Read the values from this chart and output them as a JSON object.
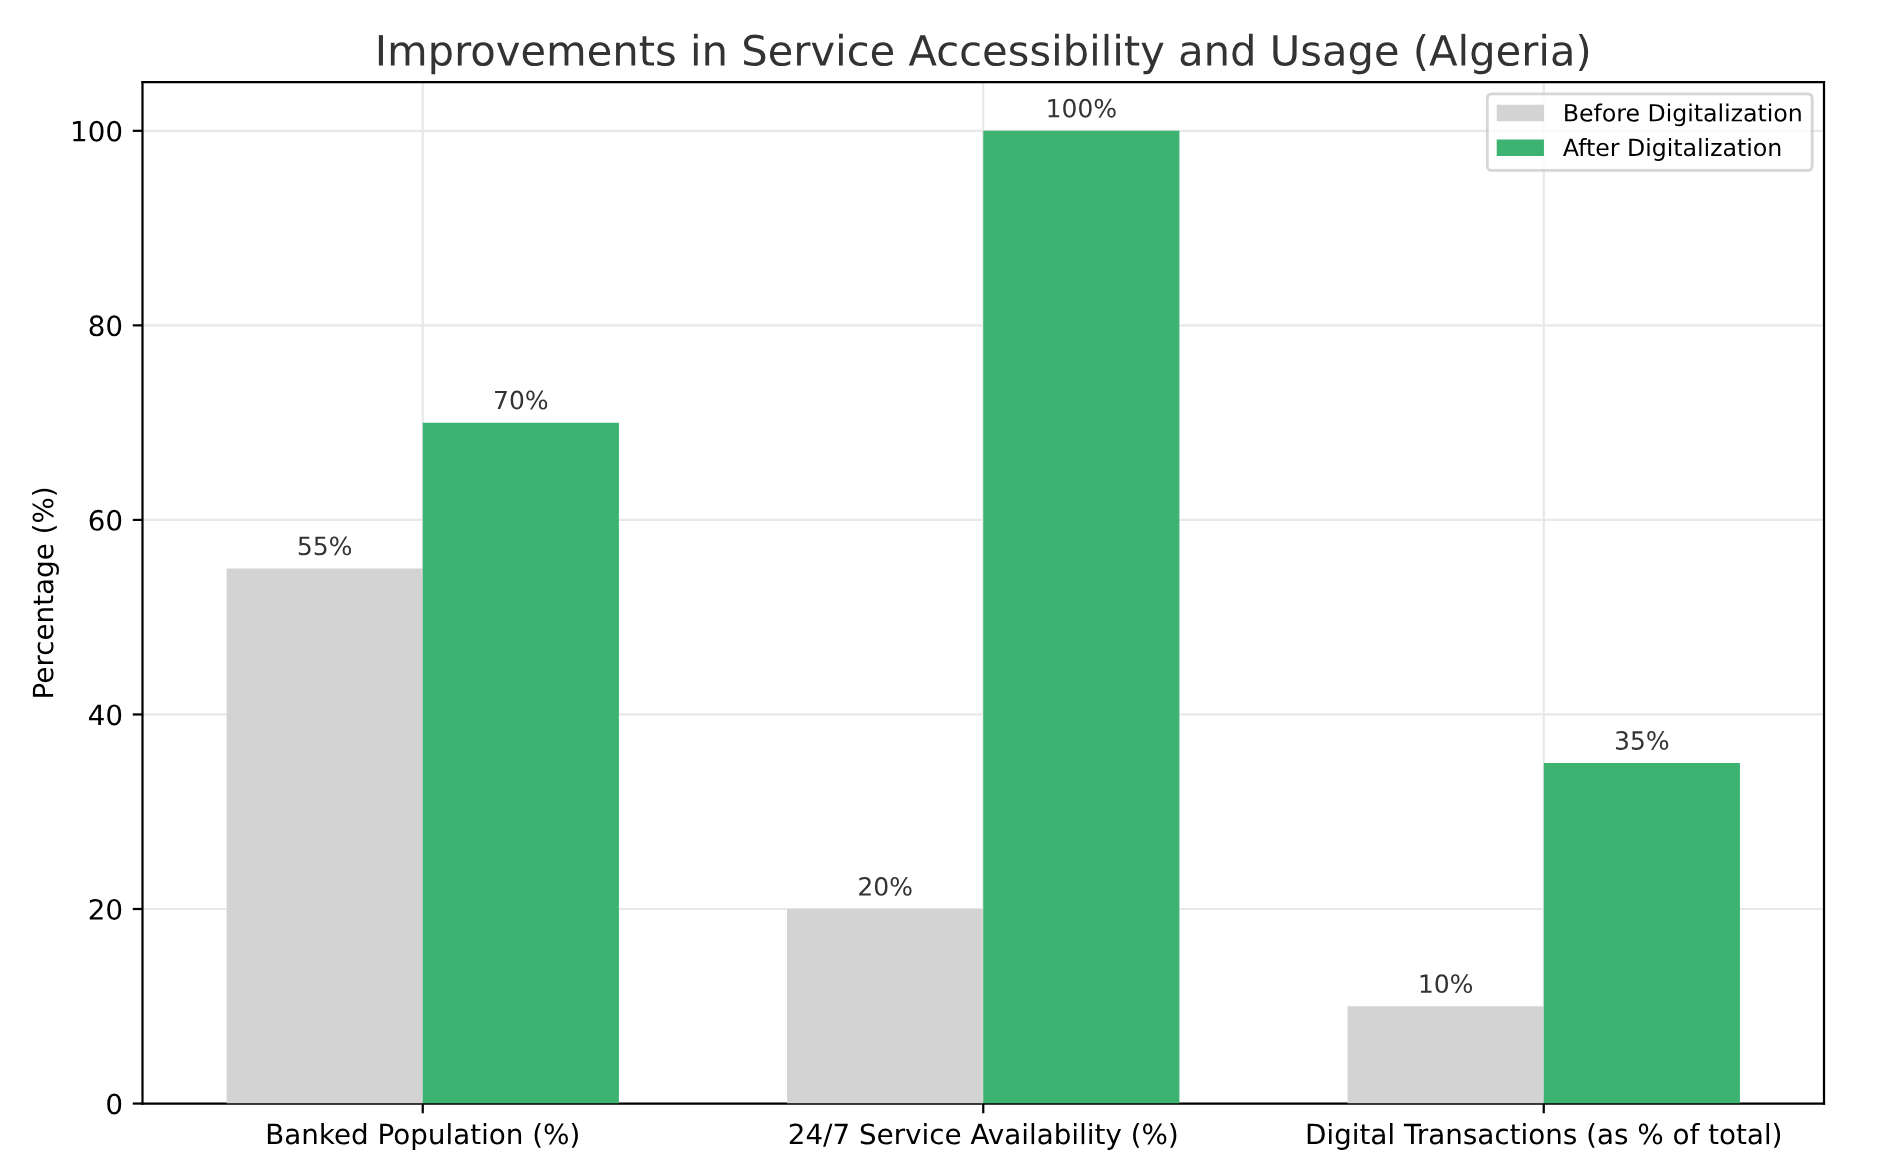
{
  "chart_data": {
    "type": "bar",
    "title": "Improvements in Service Accessibility and Usage (Algeria)",
    "ylabel": "Percentage (%)",
    "categories": [
      "Banked Population (%)",
      "24/7 Service Availability (%)",
      "Digital Transactions (as % of total)"
    ],
    "series": [
      {
        "name": "Before Digitalization",
        "color": "#d3d3d3",
        "values": [
          55,
          20,
          10
        ],
        "value_labels": [
          "55%",
          "20%",
          "10%"
        ]
      },
      {
        "name": "After Digitalization",
        "color": "#3cb371",
        "values": [
          70,
          100,
          35
        ],
        "value_labels": [
          "70%",
          "100%",
          "35%"
        ]
      }
    ],
    "ylim": [
      0,
      105
    ],
    "yticks": [
      0,
      20,
      40,
      60,
      80,
      100
    ],
    "grid": true,
    "legend": "top right"
  }
}
